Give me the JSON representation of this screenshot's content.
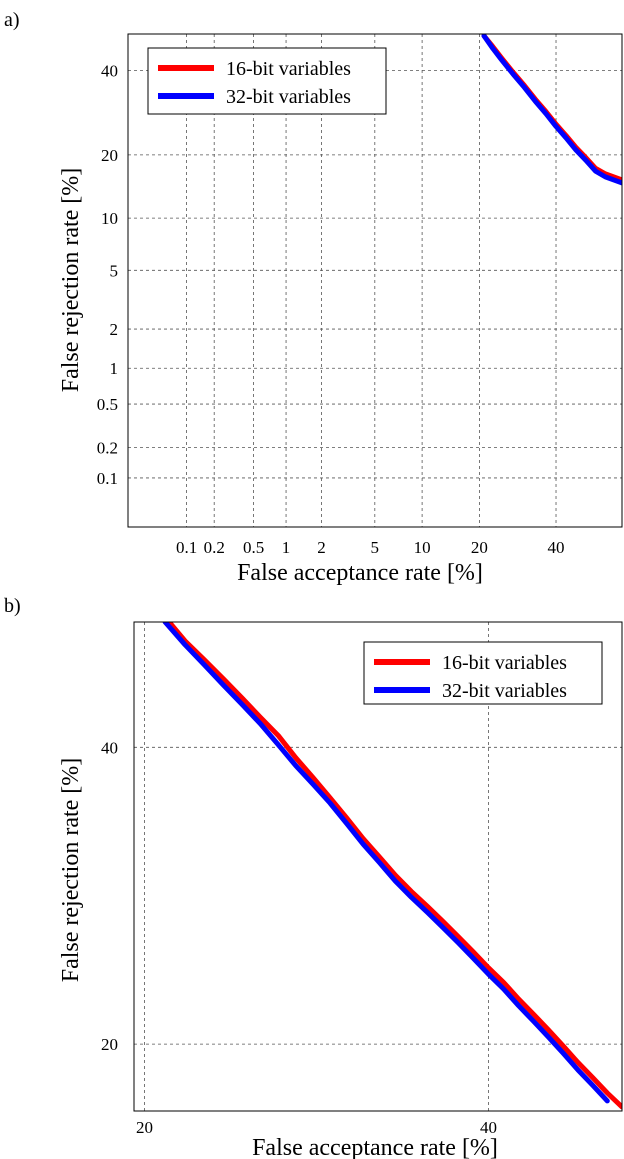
{
  "chart_data": [
    {
      "panel_label": "a)",
      "type": "line",
      "scale": "normal-deviate",
      "xlabel": "False acceptance rate [%]",
      "ylabel": "False rejection rate [%]",
      "xlim": [
        0.02,
        60
      ],
      "ylim": [
        0.03,
        50
      ],
      "x_ticks": [
        0.1,
        0.2,
        0.5,
        1,
        2,
        5,
        10,
        20,
        40
      ],
      "x_tick_labels": [
        "0.1",
        "0.2",
        "0.5",
        "1",
        "2",
        "5",
        "10",
        "20",
        "40"
      ],
      "y_ticks": [
        0.1,
        0.2,
        0.5,
        1,
        2,
        5,
        10,
        20,
        40
      ],
      "y_tick_labels": [
        "0.1",
        "0.2",
        "0.5",
        "1",
        "2",
        "5",
        "10",
        "20",
        "40"
      ],
      "grid": true,
      "legend_position": "top-left",
      "series": [
        {
          "name": "16-bit variables",
          "color": "#ff0000",
          "x": [
            21.0,
            23.0,
            25.0,
            28.0,
            31.0,
            34.0,
            37.0,
            40.0,
            43.0,
            46.0,
            49.0,
            52.0,
            55.0,
            60.0
          ],
          "y": [
            49.5,
            46.5,
            43.5,
            39.5,
            36.0,
            32.5,
            29.5,
            26.5,
            24.0,
            21.5,
            19.5,
            17.5,
            16.5,
            15.5
          ]
        },
        {
          "name": "32-bit variables",
          "color": "#0000ff",
          "x": [
            21.0,
            23.0,
            25.0,
            28.0,
            31.0,
            34.0,
            37.0,
            40.0,
            43.0,
            46.0,
            49.0,
            52.0,
            55.0,
            60.0
          ],
          "y": [
            49.5,
            46.0,
            43.0,
            39.0,
            35.5,
            32.0,
            29.0,
            26.0,
            23.5,
            21.0,
            19.0,
            17.0,
            16.0,
            15.0
          ]
        }
      ]
    },
    {
      "panel_label": "b)",
      "type": "line",
      "scale": "normal-deviate",
      "xlabel": "False acceptance rate [%]",
      "ylabel": "False rejection rate [%]",
      "xlim": [
        19.5,
        49
      ],
      "ylim": [
        16.5,
        49.8
      ],
      "x_ticks": [
        20,
        40
      ],
      "x_tick_labels": [
        "20",
        "40"
      ],
      "y_ticks": [
        20,
        40
      ],
      "y_tick_labels": [
        "20",
        "40"
      ],
      "grid": true,
      "legend_position": "top-right",
      "series": [
        {
          "name": "16-bit variables",
          "color": "#ff0000",
          "x": [
            21.2,
            22.0,
            23.0,
            24.0,
            25.0,
            26.0,
            27.0,
            28.0,
            29.0,
            30.0,
            31.0,
            32.0,
            33.0,
            34.0,
            35.0,
            36.0,
            37.0,
            38.0,
            39.0,
            40.0,
            41.0,
            42.0,
            43.0,
            44.0,
            45.0,
            46.0,
            47.0,
            48.0,
            49.0
          ],
          "y": [
            49.8,
            48.3,
            46.8,
            45.3,
            43.8,
            42.3,
            40.9,
            39.2,
            37.7,
            36.2,
            34.7,
            33.2,
            31.9,
            30.6,
            29.5,
            28.5,
            27.5,
            26.5,
            25.5,
            24.5,
            23.6,
            22.6,
            21.7,
            20.8,
            19.9,
            19.0,
            18.2,
            17.4,
            16.7
          ]
        },
        {
          "name": "32-bit variables",
          "color": "#0000ff",
          "x": [
            21.0,
            22.0,
            23.0,
            24.0,
            25.0,
            26.0,
            27.0,
            28.0,
            29.0,
            30.0,
            31.0,
            32.0,
            33.0,
            34.0,
            35.0,
            36.0,
            37.0,
            38.0,
            39.0,
            40.0,
            41.0,
            42.0,
            43.0,
            44.0,
            45.0,
            46.0,
            47.0,
            48.0
          ],
          "y": [
            49.8,
            48.0,
            46.4,
            44.8,
            43.3,
            41.8,
            40.2,
            38.6,
            37.2,
            35.8,
            34.3,
            32.8,
            31.5,
            30.2,
            29.1,
            28.1,
            27.1,
            26.1,
            25.1,
            24.1,
            23.2,
            22.2,
            21.3,
            20.4,
            19.5,
            18.6,
            17.8,
            17.0
          ]
        }
      ]
    }
  ]
}
